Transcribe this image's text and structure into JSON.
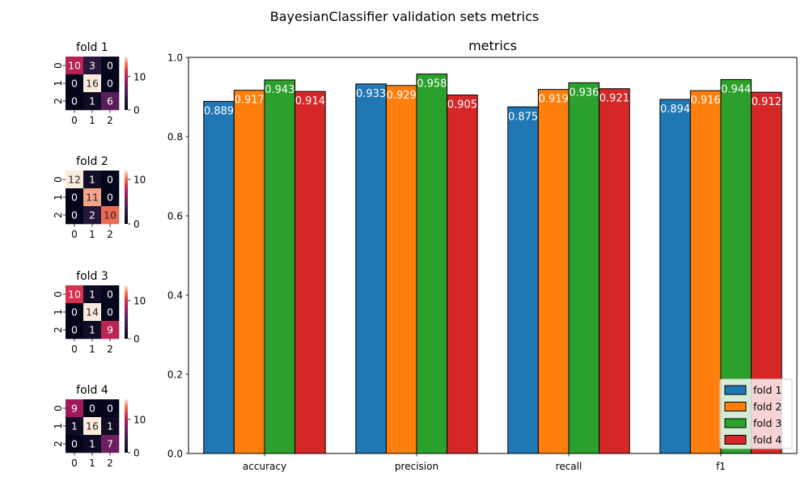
{
  "figure": {
    "title": "BayesianClassifier validation sets metrics"
  },
  "chart_data": [
    {
      "type": "heatmap",
      "title": "fold 1",
      "x_ticks": [
        "0",
        "1",
        "2"
      ],
      "y_ticks": [
        "0",
        "1",
        "2"
      ],
      "values": [
        [
          10,
          3,
          0
        ],
        [
          0,
          16,
          0
        ],
        [
          0,
          1,
          6
        ]
      ],
      "colorbar_ticks": [
        0,
        10
      ],
      "vmin": 0,
      "vmax": 16
    },
    {
      "type": "heatmap",
      "title": "fold 2",
      "x_ticks": [
        "0",
        "1",
        "2"
      ],
      "y_ticks": [
        "0",
        "1",
        "2"
      ],
      "values": [
        [
          12,
          1,
          0
        ],
        [
          0,
          11,
          0
        ],
        [
          0,
          2,
          10
        ]
      ],
      "colorbar_ticks": [
        0,
        10
      ],
      "vmin": 0,
      "vmax": 12
    },
    {
      "type": "heatmap",
      "title": "fold 3",
      "x_ticks": [
        "0",
        "1",
        "2"
      ],
      "y_ticks": [
        "0",
        "1",
        "2"
      ],
      "values": [
        [
          10,
          1,
          0
        ],
        [
          0,
          14,
          0
        ],
        [
          0,
          1,
          9
        ]
      ],
      "colorbar_ticks": [
        0,
        10
      ],
      "vmin": 0,
      "vmax": 14
    },
    {
      "type": "heatmap",
      "title": "fold 4",
      "x_ticks": [
        "0",
        "1",
        "2"
      ],
      "y_ticks": [
        "0",
        "1",
        "2"
      ],
      "values": [
        [
          9,
          0,
          0
        ],
        [
          1,
          16,
          1
        ],
        [
          0,
          1,
          7
        ]
      ],
      "colorbar_ticks": [
        0,
        10
      ],
      "vmin": 0,
      "vmax": 16
    },
    {
      "type": "bar",
      "title": "metrics",
      "categories": [
        "accuracy",
        "precision",
        "recall",
        "f1"
      ],
      "series": [
        {
          "name": "fold 1",
          "color": "#1f77b4",
          "values": [
            0.889,
            0.933,
            0.875,
            0.894
          ]
        },
        {
          "name": "fold 2",
          "color": "#ff7f0e",
          "values": [
            0.917,
            0.929,
            0.919,
            0.916
          ]
        },
        {
          "name": "fold 3",
          "color": "#2ca02c",
          "values": [
            0.943,
            0.958,
            0.936,
            0.944
          ]
        },
        {
          "name": "fold 4",
          "color": "#d62728",
          "values": [
            0.914,
            0.905,
            0.921,
            0.912
          ]
        }
      ],
      "ylim": [
        0,
        1.0
      ],
      "y_ticks": [
        0.0,
        0.2,
        0.4,
        0.6,
        0.8,
        1.0
      ],
      "y_tick_labels": [
        "0.0",
        "0.2",
        "0.4",
        "0.6",
        "0.8",
        "1.0"
      ],
      "legend": "lower-right",
      "grid": false
    }
  ]
}
